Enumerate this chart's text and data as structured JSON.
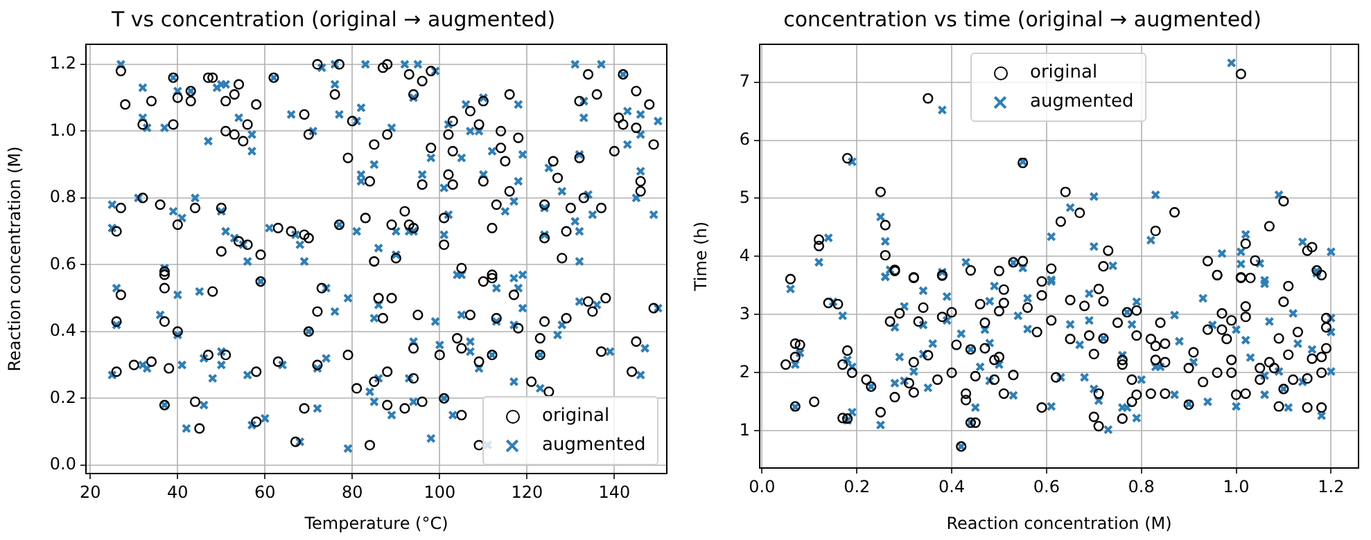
{
  "chart_data": [
    {
      "type": "scatter",
      "title": "T vs concentration (original → augmented)",
      "xlabel": "Temperature (°C)",
      "ylabel": "Reaction concentration (M)",
      "xlim": [
        19,
        152
      ],
      "xticks": [
        20,
        40,
        60,
        80,
        100,
        120,
        140
      ],
      "ylim": [
        -0.025,
        1.26
      ],
      "yticks": [
        {
          "value": 0,
          "label": "0.0"
        },
        {
          "value": 0.2,
          "label": "0.2"
        },
        {
          "value": 0.4,
          "label": "0.4"
        },
        {
          "value": 0.6,
          "label": "0.6"
        },
        {
          "value": 0.8,
          "label": "0.8"
        },
        {
          "value": 1,
          "label": "1.0"
        },
        {
          "value": 1.2,
          "label": "1.2"
        }
      ],
      "grid": true,
      "legend": "bottom right",
      "series": [
        {
          "name": "original",
          "color": "#000000",
          "marker": "circle",
          "x": [
            27,
            28,
            32,
            34,
            39,
            39,
            40,
            43,
            43,
            47,
            48,
            51,
            51,
            53,
            53,
            54,
            55,
            56,
            58,
            62,
            69,
            70,
            72,
            76,
            77,
            80,
            79,
            85,
            84,
            88,
            87,
            88,
            93,
            94,
            96,
            98,
            98,
            96,
            102,
            103,
            103,
            102,
            103,
            107,
            109,
            110,
            110,
            114,
            114,
            116,
            116,
            118,
            115,
            126,
            127,
            132,
            134,
            136,
            132,
            140,
            141,
            142,
            142,
            145,
            145,
            148,
            149,
            146,
            146,
            27,
            26,
            32,
            36,
            40,
            44,
            50,
            50,
            54,
            56,
            59,
            37,
            63,
            66,
            69,
            70,
            77,
            83,
            89,
            92,
            93,
            94,
            85,
            90,
            101,
            101,
            112,
            124,
            124,
            129,
            130,
            133,
            137,
            128,
            113,
            105,
            112,
            27,
            26,
            26,
            30,
            34,
            38,
            37,
            37,
            37,
            40,
            37,
            44,
            45,
            48,
            47,
            51,
            58,
            59,
            70,
            63,
            58,
            67,
            69,
            72,
            72,
            73,
            79,
            81,
            84,
            85,
            86,
            87,
            88,
            88,
            89,
            92,
            94,
            95,
            96,
            94,
            104,
            100,
            101,
            105,
            105,
            107,
            109,
            109,
            110,
            112,
            112,
            113,
            117,
            118,
            121,
            124,
            123,
            123,
            125,
            129,
            134,
            135,
            138,
            137,
            145,
            144,
            149
          ],
          "values": [
            1.18,
            1.08,
            1.02,
            1.09,
            1.16,
            1.02,
            1.1,
            1.09,
            1.12,
            1.16,
            1.16,
            1.09,
            1.0,
            0.99,
            1.11,
            1.14,
            0.97,
            1.02,
            1.08,
            1.16,
            1.05,
            0.99,
            1.2,
            1.11,
            1.2,
            1.03,
            0.92,
            0.96,
            0.85,
            0.99,
            1.19,
            1.2,
            1.17,
            1.11,
            1.15,
            1.18,
            0.95,
            0.84,
            0.99,
            1.03,
            0.94,
            0.87,
            0.84,
            1.06,
            1.02,
            1.09,
            0.85,
            1.0,
            0.95,
            1.11,
            0.82,
            0.98,
            0.91,
            0.91,
            0.86,
            1.09,
            1.17,
            1.11,
            0.92,
            0.94,
            1.04,
            1.02,
            1.17,
            1.12,
            1.01,
            1.08,
            0.96,
            0.85,
            0.82,
            0.77,
            0.7,
            0.8,
            0.78,
            0.72,
            0.77,
            0.77,
            0.64,
            0.67,
            0.66,
            0.63,
            0.58,
            0.71,
            0.7,
            0.69,
            0.68,
            0.72,
            0.74,
            0.72,
            0.76,
            0.72,
            0.71,
            0.61,
            0.62,
            0.74,
            0.66,
            0.71,
            0.68,
            0.78,
            0.7,
            0.77,
            0.8,
            0.77,
            0.62,
            0.78,
            0.59,
            0.57,
            0.51,
            0.43,
            0.28,
            0.3,
            0.31,
            0.29,
            0.57,
            0.53,
            0.43,
            0.4,
            0.18,
            0.19,
            0.11,
            0.52,
            0.33,
            0.33,
            0.28,
            0.55,
            0.4,
            0.31,
            0.13,
            0.07,
            0.17,
            0.46,
            0.3,
            0.53,
            0.33,
            0.23,
            0.06,
            0.25,
            0.5,
            0.44,
            0.28,
            0.18,
            0.5,
            0.17,
            0.26,
            0.45,
            0.19,
            0.35,
            0.38,
            0.33,
            0.2,
            0.15,
            0.35,
            0.45,
            0.31,
            0.06,
            0.55,
            0.56,
            0.33,
            0.44,
            0.51,
            0.41,
            0.25,
            0.43,
            0.38,
            0.33,
            0.22,
            0.44,
            0.49,
            0.46,
            0.5,
            0.34,
            0.37,
            0.28,
            0.47
          ]
        },
        {
          "name": "augmented",
          "color": "#2c7fb8",
          "marker": "cross",
          "x": [
            27,
            32,
            32,
            33,
            37,
            39,
            40,
            43,
            47,
            49,
            50,
            51,
            54,
            57,
            57,
            62,
            66,
            71,
            73,
            76,
            77,
            76,
            82,
            81,
            83,
            82,
            82,
            85,
            89,
            92,
            95,
            94,
            99,
            98,
            96,
            101,
            102,
            105,
            106,
            107,
            110,
            109,
            112,
            110,
            118,
            118,
            119,
            125,
            128,
            131,
            137,
            133,
            133,
            132,
            142,
            143,
            146,
            146,
            143,
            146,
            150,
            25,
            25,
            31,
            39,
            41,
            44,
            50,
            51,
            53,
            55,
            56,
            37,
            61,
            67,
            68,
            69,
            77,
            81,
            86,
            90,
            90,
            93,
            94,
            101,
            102,
            115,
            117,
            124,
            124,
            131,
            132,
            134,
            135,
            145,
            149,
            132,
            105,
            119,
            26,
            26,
            25,
            32,
            33,
            36,
            37,
            40,
            40,
            41,
            42,
            46,
            45,
            46,
            48,
            50,
            50,
            56,
            57,
            60,
            59,
            64,
            68,
            70,
            72,
            72,
            74,
            74,
            76,
            79,
            79,
            84,
            85,
            86,
            85,
            86,
            89,
            93,
            94,
            94,
            98,
            99,
            100,
            101,
            103,
            104,
            105,
            107,
            107,
            109,
            111,
            113,
            113,
            112,
            117,
            118,
            119,
            117,
            117,
            123,
            123,
            127,
            128,
            132,
            136,
            139,
            147,
            146,
            150
          ],
          "values": [
            1.2,
            1.13,
            1.04,
            1.01,
            1.01,
            1.16,
            1.12,
            1.12,
            0.97,
            1.13,
            1.14,
            1.14,
            1.04,
            0.94,
            0.99,
            1.16,
            1.05,
            1.0,
            1.19,
            1.14,
            1.05,
            1.2,
            1.07,
            1.03,
            1.2,
            0.85,
            0.87,
            0.9,
            1.01,
            1.2,
            1.2,
            1.1,
            1.18,
            0.92,
            0.87,
            0.83,
            1.02,
            0.92,
            1.08,
            1.0,
            1.1,
            1.0,
            0.94,
            0.87,
            1.08,
            0.85,
            0.93,
            0.89,
            0.82,
            1.2,
            1.2,
            1.09,
            1.04,
            0.93,
            1.17,
            1.06,
            1.05,
            0.99,
            0.96,
            0.88,
            1.03,
            0.78,
            0.71,
            0.8,
            0.76,
            0.74,
            0.8,
            0.76,
            0.7,
            0.68,
            0.66,
            0.61,
            0.59,
            0.71,
            0.69,
            0.66,
            0.61,
            0.72,
            0.7,
            0.65,
            0.63,
            0.7,
            0.7,
            0.7,
            0.69,
            0.75,
            0.76,
            0.79,
            0.77,
            0.69,
            0.73,
            0.7,
            0.81,
            0.75,
            0.8,
            0.75,
            0.61,
            0.57,
            0.57,
            0.53,
            0.42,
            0.27,
            0.3,
            0.29,
            0.45,
            0.18,
            0.51,
            0.39,
            0.3,
            0.11,
            0.32,
            0.52,
            0.18,
            0.26,
            0.34,
            0.3,
            0.27,
            0.12,
            0.14,
            0.55,
            0.3,
            0.07,
            0.4,
            0.17,
            0.29,
            0.53,
            0.32,
            0.46,
            0.5,
            0.05,
            0.22,
            0.44,
            0.48,
            0.19,
            0.26,
            0.15,
            0.26,
            0.37,
            0.19,
            0.08,
            0.43,
            0.36,
            0.2,
            0.15,
            0.57,
            0.45,
            0.37,
            0.34,
            0.29,
            0.06,
            0.53,
            0.43,
            0.33,
            0.56,
            0.53,
            0.47,
            0.42,
            0.25,
            0.23,
            0.33,
            0.39,
            0.42,
            0.49,
            0.48,
            0.34,
            0.35,
            0.27,
            0.47
          ]
        }
      ]
    },
    {
      "type": "scatter",
      "title": "concentration vs time (original → augmented)",
      "xlabel": "Reaction concentration (M)",
      "ylabel": "Time (h)",
      "xlim": [
        -0.005,
        1.258
      ],
      "xticks": [
        {
          "value": 0,
          "label": "0.0"
        },
        {
          "value": 0.2,
          "label": "0.2"
        },
        {
          "value": 0.4,
          "label": "0.4"
        },
        {
          "value": 0.6,
          "label": "0.6"
        },
        {
          "value": 0.8,
          "label": "0.8"
        },
        {
          "value": 1,
          "label": "1.0"
        },
        {
          "value": 1.2,
          "label": "1.2"
        }
      ],
      "ylim": [
        0.36,
        7.65
      ],
      "yticks": [
        1,
        2,
        3,
        4,
        5,
        6,
        7
      ],
      "grid": true,
      "legend": "top",
      "series": [
        {
          "name": "original",
          "color": "#000000",
          "marker": "circle",
          "x": [
            1.01,
            0.35,
            0.18,
            0.55,
            0.25,
            0.26,
            0.12,
            0.12,
            0.26,
            0.28,
            0.32,
            0.38,
            0.44,
            0.5,
            0.53,
            0.55,
            0.61,
            0.63,
            0.64,
            0.67,
            0.73,
            0.72,
            0.83,
            0.87,
            0.94,
            0.96,
            1.02,
            1.07,
            1.1,
            1.16,
            1.15,
            1.17,
            1.04,
            1.01,
            1.03,
            0.06,
            0.07,
            0.08,
            0.07,
            0.05,
            0.07,
            0.11,
            0.14,
            0.16,
            0.18,
            0.17,
            0.19,
            0.17,
            0.18,
            0.22,
            0.23,
            0.25,
            0.27,
            0.29,
            0.28,
            0.32,
            0.34,
            0.33,
            0.35,
            0.32,
            0.31,
            0.32,
            0.28,
            0.37,
            0.38,
            0.38,
            0.4,
            0.41,
            0.4,
            0.43,
            0.43,
            0.45,
            0.44,
            0.42,
            0.44,
            0.45,
            0.47,
            0.47,
            0.46,
            0.49,
            0.5,
            0.49,
            0.51,
            0.53,
            0.51,
            0.51,
            0.5,
            0.56,
            0.58,
            0.59,
            0.59,
            0.59,
            0.61,
            0.62,
            0.65,
            0.65,
            0.68,
            0.69,
            0.7,
            0.71,
            0.72,
            0.71,
            0.7,
            0.71,
            0.72,
            0.75,
            0.77,
            0.79,
            0.79,
            0.76,
            0.76,
            0.78,
            0.78,
            0.76,
            0.79,
            0.82,
            0.82,
            0.83,
            0.84,
            0.85,
            0.85,
            0.85,
            0.83,
            0.9,
            0.91,
            0.93,
            0.9,
            0.94,
            0.96,
            0.97,
            0.97,
            0.98,
            0.99,
            0.96,
            0.99,
            0.99,
            1.0,
            1.01,
            1.02,
            1.02,
            1.02,
            1.05,
            1.05,
            1.07,
            1.08,
            1.09,
            1.09,
            1.1,
            1.11,
            1.11,
            1.1,
            1.12,
            1.13,
            1.15,
            1.15,
            1.16,
            1.18,
            1.18,
            1.19,
            1.18,
            1.19,
            1.19,
            1.18
          ],
          "values": [
            7.14,
            6.72,
            5.69,
            5.61,
            5.11,
            4.54,
            4.29,
            4.18,
            4.02,
            3.75,
            3.64,
            3.67,
            3.76,
            3.75,
            3.9,
            3.92,
            3.79,
            4.6,
            5.11,
            4.75,
            4.1,
            3.83,
            4.44,
            4.76,
            3.92,
            3.68,
            4.22,
            4.52,
            4.95,
            4.16,
            4.1,
            3.76,
            3.93,
            3.64,
            3.63,
            3.61,
            2.5,
            2.48,
            2.27,
            2.14,
            1.42,
            1.5,
            3.2,
            3.18,
            2.38,
            2.14,
            2.0,
            1.22,
            1.21,
            1.88,
            1.76,
            1.32,
            2.88,
            3.02,
            3.77,
            3.63,
            3.12,
            2.88,
            2.3,
            2.18,
            1.82,
            1.66,
            1.58,
            1.88,
            2.96,
            3.68,
            3.04,
            2.48,
            2.0,
            1.64,
            1.53,
            1.14,
            1.14,
            0.73,
            2.4,
            1.94,
            2.42,
            2.86,
            3.18,
            2.22,
            2.27,
            1.88,
            1.64,
            1.96,
            3.2,
            3.43,
            3.06,
            3.12,
            2.7,
            3.33,
            3.57,
            1.4,
            2.9,
            1.92,
            2.58,
            3.25,
            3.15,
            2.64,
            2.32,
            3.44,
            3.23,
            1.64,
            1.24,
            1.08,
            2.59,
            2.86,
            3.04,
            3.07,
            2.64,
            2.14,
            2.22,
            1.88,
            1.5,
            1.21,
            1.62,
            1.64,
            2.58,
            2.46,
            2.86,
            1.64,
            2.5,
            2.18,
            2.22,
            2.08,
            2.35,
            1.84,
            1.45,
            2.74,
            3.68,
            3.02,
            2.74,
            2.58,
            2.9,
            2.0,
            2.0,
            2.22,
            1.62,
            3.63,
            3.14,
            2.96,
            1.64,
            2.08,
            1.88,
            2.18,
            2.08,
            1.42,
            2.59,
            3.22,
            3.49,
            2.31,
            1.72,
            1.88,
            2.7,
            1.4,
            1.9,
            2.24,
            1.4,
            2.27,
            2.42,
            2.0,
            2.78,
            2.94,
            3.68
          ]
        },
        {
          "name": "augmented",
          "color": "#2c7fb8",
          "marker": "cross",
          "x": [
            0.99,
            0.38,
            0.19,
            0.55,
            0.25,
            0.26,
            0.14,
            0.12,
            0.26,
            0.27,
            0.38,
            0.43,
            0.53,
            0.55,
            0.61,
            0.61,
            0.65,
            0.7,
            0.7,
            0.74,
            0.83,
            0.82,
            0.97,
            1.01,
            1.02,
            1.01,
            1.05,
            1.09,
            1.14,
            1.2,
            1.17,
            1.06,
            0.06,
            0.07,
            0.08,
            0.07,
            0.15,
            0.17,
            0.18,
            0.19,
            0.18,
            0.19,
            0.23,
            0.25,
            0.26,
            0.28,
            0.29,
            0.28,
            0.3,
            0.3,
            0.34,
            0.34,
            0.36,
            0.34,
            0.35,
            0.32,
            0.39,
            0.39,
            0.42,
            0.42,
            0.44,
            0.45,
            0.46,
            0.44,
            0.47,
            0.48,
            0.48,
            0.49,
            0.5,
            0.48,
            0.53,
            0.54,
            0.56,
            0.56,
            0.61,
            0.61,
            0.63,
            0.65,
            0.67,
            0.68,
            0.69,
            0.69,
            0.7,
            0.71,
            0.72,
            0.73,
            0.76,
            0.77,
            0.78,
            0.79,
            0.76,
            0.77,
            0.79,
            0.8,
            0.83,
            0.84,
            0.87,
            0.88,
            0.87,
            0.9,
            0.91,
            0.93,
            0.94,
            0.95,
            1.0,
            1.02,
            1.03,
            1.0,
            1.06,
            1.07,
            1.06,
            1.06,
            1.09,
            1.1,
            1.11,
            1.12,
            1.13,
            1.14,
            1.16,
            1.18,
            1.2,
            1.2,
            1.2,
            1.17
          ],
          "values": [
            7.33,
            6.52,
            5.63,
            5.63,
            4.68,
            4.26,
            4.32,
            3.9,
            3.65,
            3.77,
            3.73,
            3.9,
            3.89,
            3.8,
            3.6,
            4.34,
            4.84,
            5.03,
            4.17,
            3.84,
            5.06,
            4.28,
            4.05,
            4.08,
            4.38,
            3.87,
            3.88,
            5.06,
            4.25,
            4.08,
            3.75,
            3.59,
            3.44,
            2.14,
            2.34,
            1.41,
            3.22,
            2.98,
            2.22,
            2.1,
            1.18,
            1.32,
            1.76,
            1.1,
            3.65,
            2.78,
            2.27,
            1.82,
            3.14,
            1.86,
            3.41,
            2.82,
            2.5,
            2.32,
            1.74,
            2.02,
            3.31,
            2.9,
            2.67,
            0.73,
            1.14,
            1.4,
            2.1,
            2.4,
            2.74,
            2.51,
            3.23,
            3.49,
            2.14,
            1.86,
            1.61,
            2.98,
            2.75,
            3.28,
            3.57,
            1.42,
            1.92,
            2.83,
            2.48,
            1.92,
            2.9,
            3.36,
            1.72,
            1.52,
            2.59,
            1.02,
            2.3,
            3.04,
            2.83,
            3.22,
            1.4,
            1.4,
            1.22,
            1.88,
            2.1,
            2.1,
            2.99,
            2.54,
            1.62,
            1.46,
            2.18,
            3.28,
            1.5,
            2.82,
            2.74,
            2.56,
            2.26,
            1.42,
            3.53,
            2.88,
            1.95,
            1.62,
            2.02,
            1.72,
            1.4,
            3.02,
            2.5,
            1.84,
            2.4,
            1.26,
            2.94,
            2.7,
            2.02,
            3.71
          ]
        }
      ]
    }
  ]
}
